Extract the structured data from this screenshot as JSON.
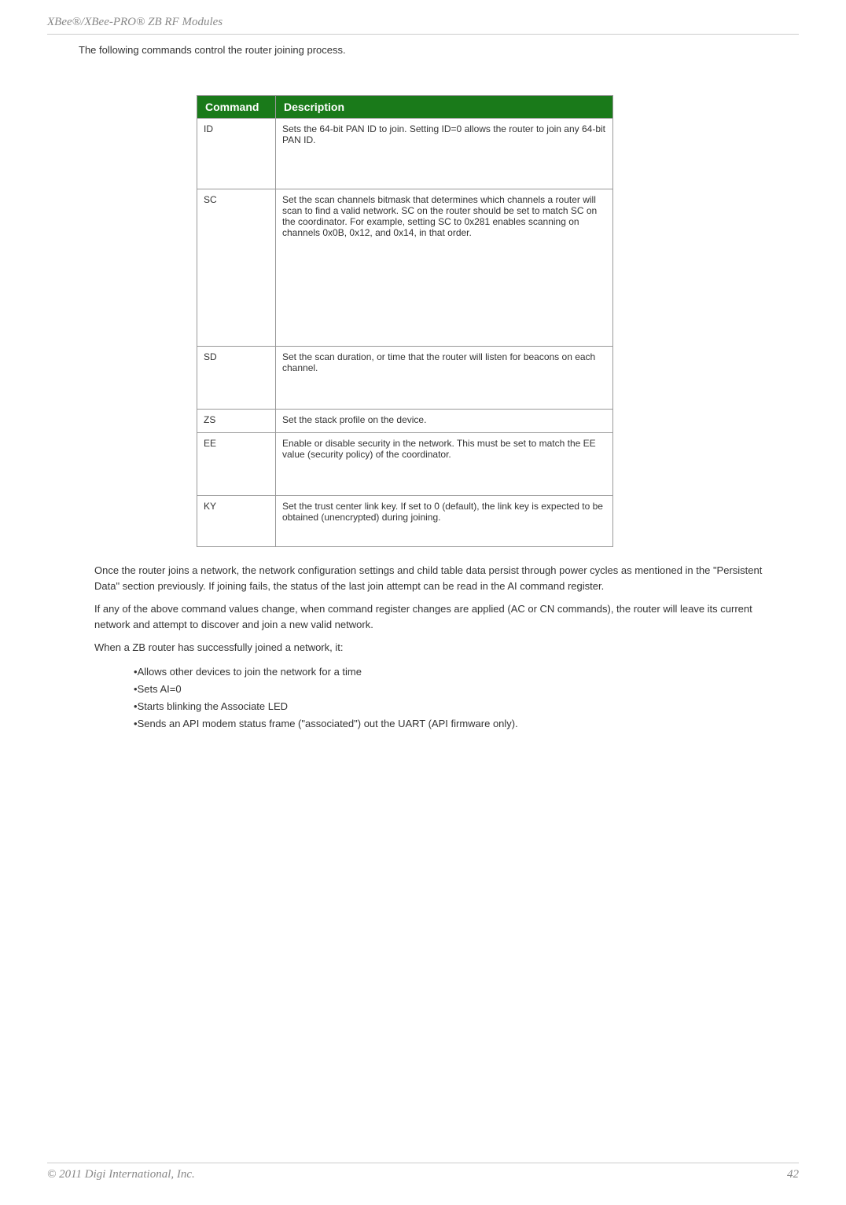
{
  "header": {
    "title": "XBee®/XBee-PRO® ZB RF Modules"
  },
  "intro": "The following commands control the router joining process.",
  "table": {
    "headers": {
      "command": "Command",
      "description": "Description"
    },
    "header_bg": "#1a7a1a",
    "header_fg": "#ffffff",
    "border_color": "#999999",
    "rows": [
      {
        "cmd": "ID",
        "desc": "Sets the 64-bit PAN ID to join. Setting ID=0 allows the router to join any 64-bit PAN ID.",
        "cls": "row-id"
      },
      {
        "cmd": "SC",
        "desc": "Set the scan channels bitmask that determines which channels a router will scan to find a valid network. SC on the router should be set to match SC on the coordinator. For example, setting SC to 0x281 enables scanning on channels 0x0B, 0x12, and 0x14, in that order.",
        "cls": "row-sc"
      },
      {
        "cmd": "SD",
        "desc": "Set the scan duration, or time that the router will listen for beacons on each channel.",
        "cls": "row-sd"
      },
      {
        "cmd": "ZS",
        "desc": "Set the stack profile on the device.",
        "cls": "row-zs"
      },
      {
        "cmd": "EE",
        "desc": "Enable or disable security in the network. This must be set to match the EE value (security policy) of the coordinator.",
        "cls": "row-ee"
      },
      {
        "cmd": "KY",
        "desc": "Set the trust center link key. If set to 0 (default), the link key is expected to be obtained (unencrypted) during joining.",
        "cls": "row-ky"
      }
    ]
  },
  "paragraphs": {
    "p1": "Once the router joins a network, the network configuration settings and child table data persist through power cycles as mentioned in the \"Persistent Data\" section previously. If joining fails, the status of the last join attempt can be read in the AI command register.",
    "p2": "If any of the above command values change, when command register changes are applied (AC or CN commands), the router will leave its current network and attempt to discover and join a new valid network.",
    "p3": "When a ZB router has successfully joined a network, it:"
  },
  "bullets": [
    "Allows other devices to join the network for a time",
    "Sets AI=0",
    "Starts blinking the Associate LED",
    "Sends an API modem status frame (\"associated\") out the UART (API firmware only)."
  ],
  "footer": {
    "copyright": "© 2011 Digi International, Inc.",
    "page": "42"
  }
}
